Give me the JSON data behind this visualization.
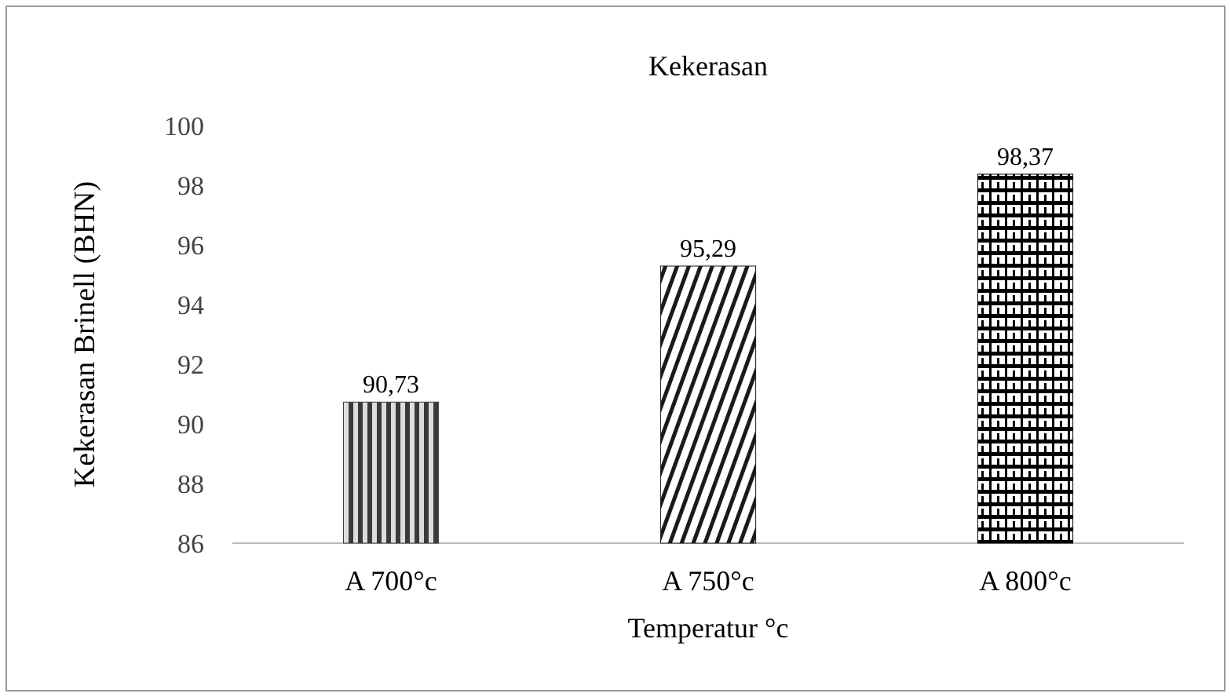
{
  "chart_data": {
    "type": "bar",
    "title": "Kekerasan",
    "xlabel": "Temperatur °c",
    "ylabel": "Kekerasan Brinell (BHN)",
    "categories": [
      "A 700°c",
      "A 750°c",
      "A 800°c"
    ],
    "values": [
      90.73,
      95.29,
      98.37
    ],
    "colors": [
      "#3a3a3a",
      "#1a1a1a",
      "#000000"
    ],
    "value_labels": [
      "90,73",
      "95,29",
      "98,37"
    ],
    "ylim": [
      86,
      100
    ],
    "yticks": [
      86,
      88,
      90,
      92,
      94,
      96,
      98,
      100
    ],
    "grid": false
  }
}
